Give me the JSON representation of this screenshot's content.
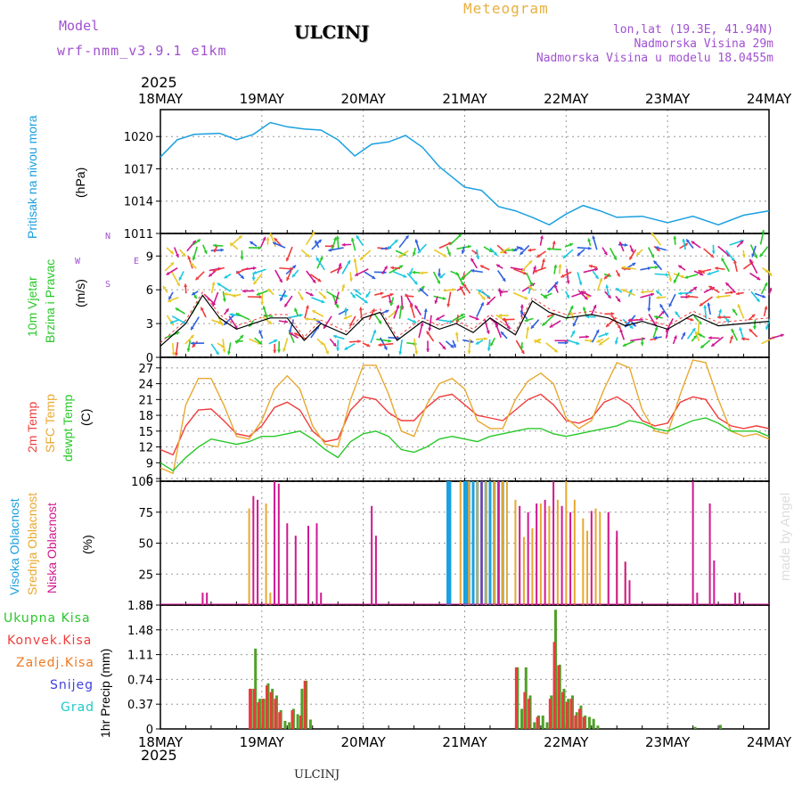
{
  "header": {
    "model_label": "Model",
    "model_name": "wrf-nmm_v3.9.1 e1km",
    "station": "ULCINJ",
    "meteogram": "Meteogram",
    "lonlat": "lon,lat (19.3E, 41.94N)",
    "elevation": "Nadmorska Visina 29m",
    "model_elevation": "Nadmorska Visina u modelu 18.0455m",
    "year_top": "2025",
    "year_bottom": "2025",
    "footer_station": "ULCINJ",
    "watermark": "made by Angel"
  },
  "colors": {
    "pressure": "#1aa0e0",
    "t2m": "#f03c3c",
    "sfc": "#e8a830",
    "dew": "#28c828",
    "high_cloud": "#1aa0e0",
    "mid_cloud": "#e8a830",
    "low_cloud": "#d01890",
    "total_precip": "#50a028",
    "conv_precip": "#e83c3c",
    "frz_precip": "#f07820",
    "snow": "#4040e0",
    "hail": "#20c8c8",
    "wind_label": "#28c828",
    "purple": "#a050d0"
  },
  "panel_labels": {
    "pressure": "Pritisak na nivou mora",
    "pressure_unit": "(hPa)",
    "wind_1": "10m Vjetar",
    "wind_2": "Brzina i Pravac",
    "wind_unit": "(m/s)",
    "wind_rose": [
      "N",
      "S",
      "W",
      "E"
    ],
    "temp_1": "2m Temp",
    "temp_2": "SFC Temp",
    "temp_3": "dewpt Temp",
    "temp_unit": "(C)",
    "cloud_1": "Visoka Oblacnost",
    "cloud_2": "Srednja Oblacnost",
    "cloud_3": "Niska Oblacnost",
    "cloud_unit": "(%)",
    "precip_legend": [
      "Ukupna Kisa",
      "Konvek.Kisa",
      "Zaledj.Kisa",
      "Snijeg",
      "Grad"
    ],
    "precip_unit": "1hr Precip (mm)"
  },
  "chart_data": [
    {
      "type": "line",
      "panel": "pressure",
      "x_labels": [
        "18MAY",
        "19MAY",
        "20MAY",
        "21MAY",
        "22MAY",
        "23MAY",
        "24MAY"
      ],
      "ylim": [
        1011,
        1022.5
      ],
      "yticks": [
        "1011",
        "1014",
        "1017",
        "1020"
      ],
      "grid": true,
      "x_hours": [
        0,
        4,
        8,
        14,
        18,
        22,
        26,
        30,
        34,
        38,
        42,
        46,
        50,
        54,
        58,
        62,
        66,
        72,
        76,
        80,
        84,
        88,
        92,
        96,
        100,
        104,
        108,
        114,
        120,
        126,
        132,
        138,
        144
      ],
      "values": [
        1018.1,
        1019.7,
        1020.2,
        1020.3,
        1019.7,
        1020.2,
        1021.3,
        1020.9,
        1020.7,
        1020.6,
        1019.7,
        1018.2,
        1019.3,
        1019.5,
        1020.1,
        1019.0,
        1017.2,
        1015.3,
        1015.0,
        1013.5,
        1013.1,
        1012.5,
        1011.8,
        1012.8,
        1013.6,
        1013.1,
        1012.5,
        1012.6,
        1012.0,
        1012.6,
        1011.8,
        1012.7,
        1013.1
      ]
    },
    {
      "type": "line",
      "panel": "wind",
      "ylim": [
        0,
        11
      ],
      "yticks": [
        "0",
        "3",
        "6",
        "9"
      ],
      "grid": true,
      "x_hours": [
        0,
        6,
        10,
        14,
        18,
        22,
        26,
        30,
        34,
        38,
        44,
        48,
        52,
        56,
        62,
        66,
        70,
        74,
        78,
        84,
        88,
        92,
        96,
        102,
        106,
        110,
        114,
        120,
        126,
        132,
        138,
        144
      ],
      "values": [
        1.0,
        3.0,
        5.5,
        3.5,
        2.5,
        3.0,
        3.5,
        3.5,
        1.5,
        3.0,
        2.0,
        3.5,
        4.0,
        1.5,
        3.2,
        2.5,
        3.0,
        2.2,
        3.5,
        2.0,
        5.0,
        4.0,
        3.5,
        3.8,
        3.5,
        2.8,
        3.2,
        2.5,
        3.8,
        2.8,
        3.0,
        3.2
      ]
    },
    {
      "type": "line",
      "panel": "temperature",
      "ylim": [
        5.5,
        29
      ],
      "yticks": [
        "6",
        "9",
        "12",
        "15",
        "18",
        "21",
        "24",
        "27"
      ],
      "grid": true,
      "x_hours": [
        0,
        3,
        6,
        9,
        12,
        15,
        18,
        21,
        24,
        27,
        30,
        33,
        36,
        39,
        42,
        45,
        48,
        51,
        54,
        57,
        60,
        63,
        66,
        69,
        72,
        75,
        78,
        81,
        84,
        87,
        90,
        93,
        96,
        99,
        102,
        105,
        108,
        111,
        114,
        117,
        120,
        123,
        126,
        129,
        132,
        135,
        138,
        141,
        144
      ],
      "series": [
        {
          "name": "2m Temp",
          "values": [
            11.5,
            10.5,
            16,
            19,
            19.2,
            17,
            14.5,
            14,
            16,
            19.5,
            20.5,
            19,
            15,
            13,
            13.5,
            19,
            21.5,
            21,
            18.5,
            17,
            17,
            19.5,
            21.5,
            22,
            20,
            18,
            17.5,
            17,
            19,
            21,
            22,
            20,
            17,
            16.5,
            17.5,
            20.5,
            21.5,
            20,
            17,
            16,
            16.5,
            20.5,
            21.5,
            21,
            17.5,
            16,
            15.5,
            16,
            15.5
          ]
        },
        {
          "name": "SFC Temp",
          "values": [
            8,
            7,
            20,
            25,
            25,
            20,
            14,
            13.5,
            17,
            23,
            25.5,
            23,
            16,
            12.5,
            12,
            21,
            27.5,
            27.5,
            22,
            15,
            14,
            20,
            24,
            25,
            23,
            17,
            15.5,
            15.5,
            21,
            24.5,
            26,
            24,
            17.5,
            15.5,
            17,
            23,
            28,
            27,
            19,
            15,
            14.5,
            22,
            28.5,
            28,
            21,
            15,
            14,
            14.5,
            13.5
          ]
        },
        {
          "name": "dewpt Temp",
          "values": [
            9,
            7.5,
            10,
            12,
            13.5,
            13,
            12.5,
            13,
            14,
            14,
            14.5,
            15,
            13.5,
            11.5,
            10,
            13,
            14.5,
            15,
            14,
            11.5,
            11,
            12,
            13.5,
            14,
            13.5,
            13,
            14,
            14.5,
            15,
            15.5,
            15.5,
            14.5,
            14,
            14.5,
            15,
            15.5,
            16,
            17,
            16.5,
            15.5,
            15,
            16,
            17,
            17.5,
            16.5,
            15,
            15,
            15,
            14
          ]
        }
      ]
    },
    {
      "type": "bar",
      "panel": "cloud",
      "ylim": [
        0,
        100
      ],
      "yticks": [
        "0",
        "25",
        "50",
        "75",
        "100"
      ],
      "grid": true,
      "series": [
        {
          "name": "Visoka Oblacnost",
          "x_hours": [
            68,
            68.5,
            72,
            72.5,
            73,
            74,
            75,
            76,
            77,
            78,
            79,
            80,
            81
          ],
          "values": [
            100,
            100,
            100,
            100,
            100,
            100,
            100,
            100,
            100,
            100,
            100,
            100,
            100
          ]
        },
        {
          "name": "Srednja Oblacnost",
          "x_hours": [
            21,
            25,
            26,
            71,
            73,
            75,
            77,
            79,
            81,
            82,
            84,
            86,
            88,
            90,
            92,
            94,
            96,
            98,
            100,
            101,
            103,
            104,
            106,
            108,
            110
          ],
          "values": [
            78,
            82,
            10,
            100,
            100,
            100,
            100,
            100,
            100,
            100,
            85,
            55,
            62,
            82,
            80,
            85,
            100,
            85,
            70,
            60,
            78,
            75,
            75,
            55,
            35
          ]
        },
        {
          "name": "Niska Oblacnost",
          "x_hours": [
            10,
            11,
            22,
            23,
            27,
            28,
            30,
            32,
            35,
            37,
            38,
            50,
            51,
            76,
            80,
            85,
            87,
            89,
            91,
            93,
            95,
            97,
            102,
            106,
            108,
            110,
            111,
            126,
            127,
            130,
            131,
            136,
            137
          ],
          "values": [
            10,
            10,
            88,
            85,
            100,
            98,
            66,
            56,
            64,
            66,
            10,
            80,
            56,
            100,
            100,
            80,
            75,
            82,
            85,
            100,
            80,
            75,
            76,
            75,
            60,
            35,
            20,
            100,
            10,
            82,
            36,
            10,
            10
          ]
        }
      ]
    },
    {
      "type": "bar",
      "panel": "precip",
      "ylim": [
        0,
        1.85
      ],
      "yticks": [
        "0",
        "0.37",
        "0.74",
        "1.11",
        "1.48",
        "1.85"
      ],
      "grid": true,
      "series": [
        {
          "name": "Ukupna Kisa",
          "x_hours": [
            21.5,
            22.5,
            23.5,
            24.5,
            25.5,
            26.5,
            27.5,
            28.5,
            29.5,
            30.5,
            31.5,
            32.5,
            33.5,
            34.5,
            35.5,
            84.5,
            85.5,
            86.5,
            87.5,
            88.5,
            89.5,
            90.5,
            91.5,
            92.5,
            93.5,
            94.5,
            95.5,
            96.5,
            97.5,
            98.5,
            99.5,
            100.5,
            101.5,
            102.5,
            103.5,
            126.5,
            132.5
          ],
          "values": [
            0.6,
            1.2,
            0.45,
            0.45,
            0.68,
            0.6,
            0.5,
            0.28,
            0.12,
            0.1,
            0.3,
            0.22,
            0.6,
            0.72,
            0.14,
            0.92,
            0.3,
            0.92,
            0.5,
            0.1,
            0.2,
            0.2,
            0.1,
            0.5,
            1.78,
            0.96,
            0.6,
            0.45,
            0.5,
            0.25,
            0.35,
            0.2,
            0.18,
            0.15,
            0.05,
            0.03,
            0.06
          ]
        },
        {
          "name": "Konvek.Kisa",
          "x_hours": [
            21.2,
            22.2,
            23.2,
            24.2,
            25.2,
            26.2,
            27.2,
            28.2,
            31.2,
            33.2,
            34.2,
            84.2,
            86.2,
            87.2,
            89.2,
            92.2,
            93.2,
            94.2,
            95.2,
            96.2,
            97.2,
            98.2,
            99.2,
            100.2
          ],
          "values": [
            0.6,
            0.6,
            0.4,
            0.45,
            0.65,
            0.55,
            0.45,
            0.25,
            0.28,
            0.2,
            0.72,
            0.92,
            0.55,
            0.45,
            0.18,
            0.45,
            1.3,
            0.95,
            0.55,
            0.4,
            0.45,
            0.2,
            0.3,
            0.18
          ]
        }
      ]
    }
  ]
}
